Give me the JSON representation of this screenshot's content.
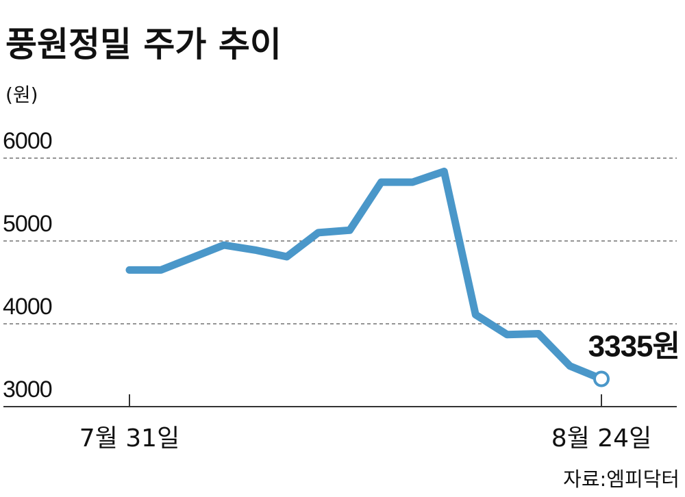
{
  "chart_data": {
    "type": "line",
    "title": "풍원정밀 주가 추이",
    "ylabel": "(원)",
    "ylim": [
      3000,
      6000
    ],
    "yticks": [
      6000,
      5000,
      4000,
      3000
    ],
    "grid": true,
    "x_tick_labels": [
      "7월 31일",
      "8월 24일"
    ],
    "series": [
      {
        "values": [
          4650,
          4650,
          4800,
          4950,
          4890,
          4810,
          5100,
          5130,
          5710,
          5710,
          5840,
          4110,
          3870,
          3880,
          3490,
          3335
        ]
      }
    ],
    "end_label": "3335원",
    "source": "자료:엠피닥터",
    "line_color": "#4a97c9",
    "axis_color": "#333333"
  }
}
